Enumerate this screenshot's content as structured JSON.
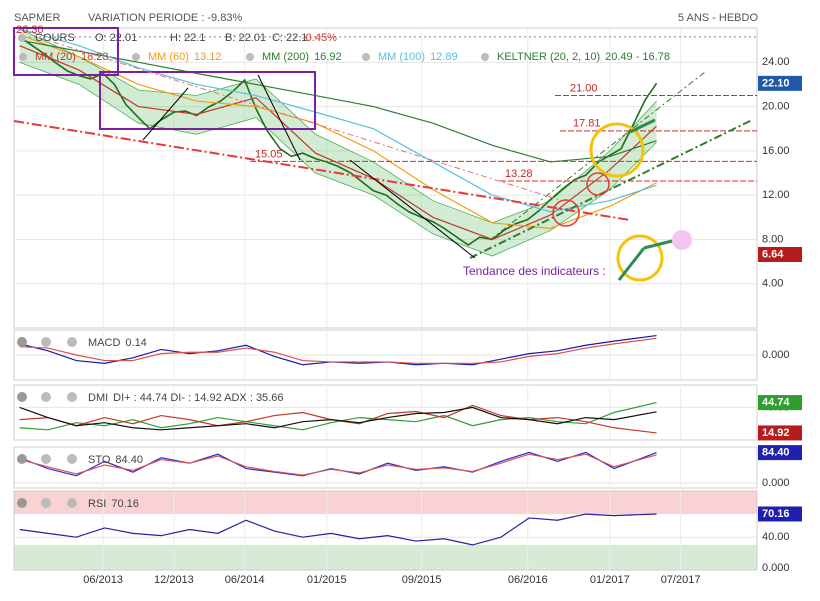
{
  "header": {
    "symbol": "SAPMER",
    "variation": "VARIATION PERIODE : -9.83%",
    "period": "5 ANS - HEBDO"
  },
  "chart_data": [
    {
      "type": "line",
      "xlim": [
        2012.79,
        2018.04
      ],
      "ylim": [
        0,
        27.1
      ],
      "xticks": [
        {
          "value": 2013.42,
          "label": "06/2013"
        },
        {
          "value": 2013.92,
          "label": "12/2013"
        },
        {
          "value": 2014.42,
          "label": "06/2014"
        },
        {
          "value": 2015.0,
          "label": "01/2015"
        },
        {
          "value": 2015.67,
          "label": "09/2015"
        },
        {
          "value": 2016.42,
          "label": "06/2016"
        },
        {
          "value": 2017.0,
          "label": "01/2017"
        },
        {
          "value": 2017.5,
          "label": "07/2017"
        }
      ],
      "yticks": [
        {
          "value": 4,
          "label": "4.00"
        },
        {
          "value": 8,
          "label": "8.00"
        },
        {
          "value": 12,
          "label": "12.00"
        },
        {
          "value": 16,
          "label": "16.00"
        },
        {
          "value": 20,
          "label": "20.00"
        },
        {
          "value": 24,
          "label": "24.00"
        }
      ],
      "grid": true,
      "quote": [
        "O: 22.01",
        "H: 22.1",
        "B: 22.01",
        "C: 22.1"
      ],
      "change": "-0.45%",
      "x": [
        2012.83,
        2012.92,
        2013.0,
        2013.08,
        2013.17,
        2013.25,
        2013.33,
        2013.42,
        2013.5,
        2013.58,
        2013.67,
        2013.75,
        2013.83,
        2013.92,
        2014.0,
        2014.08,
        2014.17,
        2014.25,
        2014.33,
        2014.42,
        2014.5,
        2014.58,
        2014.67,
        2014.75,
        2014.83,
        2014.92,
        2015.0,
        2015.08,
        2015.17,
        2015.25,
        2015.33,
        2015.42,
        2015.5,
        2015.58,
        2015.67,
        2015.75,
        2015.83,
        2015.92,
        2016.0,
        2016.08,
        2016.17,
        2016.25,
        2016.33,
        2016.42,
        2016.5,
        2016.58,
        2016.67,
        2016.75,
        2016.83,
        2016.92,
        2017.0,
        2017.08,
        2017.17,
        2017.25,
        2017.33
      ],
      "series": [
        {
          "name": "COURS",
          "color": "#1b6e1b",
          "values": [
            26.3,
            25.5,
            24.8,
            24.0,
            23.2,
            22.8,
            22.5,
            23.0,
            22.0,
            20.2,
            19.0,
            18.0,
            18.8,
            19.5,
            19.6,
            19.2,
            20.0,
            20.5,
            21.3,
            22.4,
            19.8,
            17.8,
            16.2,
            15.5,
            15.8,
            15.3,
            15.0,
            14.6,
            14.0,
            13.2,
            12.4,
            12.0,
            11.2,
            10.5,
            10.0,
            9.6,
            9.0,
            8.2,
            7.5,
            8.2,
            8.0,
            8.8,
            9.4,
            9.8,
            10.6,
            11.6,
            12.6,
            13.4,
            13.8,
            15.0,
            15.6,
            16.2,
            18.5,
            20.6,
            22.1
          ]
        },
        {
          "name": "MM (20)",
          "color": "#c0392b",
          "x": [
            2012.83,
            2013.25,
            2013.67,
            2014.08,
            2014.5,
            2014.92,
            2015.33,
            2015.75,
            2016.17,
            2016.58,
            2017.0,
            2017.33
          ],
          "values": [
            25.5,
            23.3,
            20.0,
            19.3,
            20.8,
            15.8,
            13.5,
            10.0,
            8.0,
            10.2,
            14.3,
            18.23
          ]
        },
        {
          "name": "MM (60)",
          "color": "#f39c12",
          "x": [
            2012.83,
            2013.25,
            2013.67,
            2014.08,
            2014.5,
            2014.92,
            2015.33,
            2015.75,
            2016.17,
            2016.58,
            2017.0,
            2017.33
          ],
          "values": [
            26.5,
            24.5,
            22.0,
            20.5,
            20.0,
            18.5,
            16.0,
            12.5,
            9.5,
            9.0,
            11.0,
            13.12
          ]
        },
        {
          "name": "MM (200)",
          "color": "#2e7d32",
          "x": [
            2012.83,
            2013.25,
            2013.67,
            2014.08,
            2014.5,
            2014.92,
            2015.33,
            2015.75,
            2016.17,
            2016.58,
            2017.0,
            2017.33
          ],
          "values": [
            26.0,
            25.0,
            24.0,
            23.0,
            22.0,
            21.0,
            20.0,
            18.5,
            16.5,
            15.0,
            15.5,
            16.92
          ]
        },
        {
          "name": "MM (100)",
          "color": "#5bc0de",
          "x": [
            2012.83,
            2013.25,
            2013.67,
            2014.08,
            2014.5,
            2014.92,
            2015.33,
            2015.75,
            2016.17,
            2016.58,
            2017.0,
            2017.33
          ],
          "values": [
            27.0,
            25.5,
            23.5,
            22.0,
            21.0,
            19.5,
            18.0,
            15.0,
            12.0,
            10.5,
            11.5,
            12.89
          ]
        }
      ],
      "keltner": {
        "name": "KELTNER (20, 2, 10)",
        "color": "#4caf50",
        "value_label": "20.49 - 16.78",
        "x": [
          2012.83,
          2013.25,
          2013.67,
          2014.08,
          2014.5,
          2014.92,
          2015.33,
          2015.75,
          2016.17,
          2016.58,
          2017.0,
          2017.33
        ],
        "upper": [
          27.0,
          24.5,
          21.5,
          21.0,
          22.5,
          17.5,
          15.0,
          11.5,
          9.5,
          11.5,
          16.0,
          20.49
        ],
        "lower": [
          24.0,
          22.0,
          18.5,
          17.5,
          19.0,
          14.0,
          12.0,
          8.5,
          6.5,
          8.8,
          12.5,
          16.78
        ]
      },
      "levels": [
        {
          "value": 26.3,
          "label": "26.30"
        },
        {
          "value": 21,
          "label": "21.00"
        },
        {
          "value": 17.81
        },
        {
          "value": 15.05
        },
        {
          "value": 13.28
        }
      ],
      "badges": [
        {
          "value": 22.1,
          "label": "22.10",
          "color": "#1f5aa8"
        },
        {
          "value": 6.64,
          "color": "#b71c1c"
        }
      ],
      "annotation": "Tendance des indicateurs :"
    },
    {
      "type": "line",
      "title": "MACD",
      "readout": "0.14",
      "ylim": [
        -0.18,
        0.18
      ],
      "yticks": [
        {
          "value": 0,
          "label": "0.000"
        }
      ],
      "x": [
        2012.83,
        2013.03,
        2013.23,
        2013.43,
        2013.63,
        2013.83,
        2014.03,
        2014.23,
        2014.43,
        2014.63,
        2014.83,
        2015.03,
        2015.23,
        2015.43,
        2015.63,
        2015.83,
        2016.03,
        2016.23,
        2016.43,
        2016.63,
        2016.83,
        2017.03,
        2017.33
      ],
      "series": [
        {
          "name": "MACD",
          "color": "#1a1aa6",
          "values": [
            0.08,
            0.03,
            -0.04,
            -0.06,
            -0.02,
            0.04,
            0.01,
            0.03,
            0.07,
            -0.01,
            -0.07,
            -0.05,
            -0.06,
            -0.05,
            -0.07,
            -0.06,
            -0.07,
            -0.03,
            0.01,
            0.03,
            0.07,
            0.1,
            0.14
          ]
        },
        {
          "name": "Signal",
          "color": "#d9534f",
          "values": [
            0.06,
            0.05,
            0.0,
            -0.04,
            -0.04,
            0.01,
            0.02,
            0.02,
            0.05,
            0.02,
            -0.04,
            -0.05,
            -0.05,
            -0.05,
            -0.06,
            -0.06,
            -0.06,
            -0.05,
            -0.01,
            0.01,
            0.05,
            0.08,
            0.12
          ]
        }
      ]
    },
    {
      "type": "line",
      "title": "DMI",
      "readout": "DI+ : 44.74 DI- : 14.92 ADX : 35.66",
      "ylim": [
        8,
        62
      ],
      "yticks": [
        {
          "value": 40,
          "label": "40.00"
        }
      ],
      "x": [
        2012.83,
        2013.03,
        2013.23,
        2013.43,
        2013.63,
        2013.83,
        2014.03,
        2014.23,
        2014.43,
        2014.63,
        2014.83,
        2015.03,
        2015.23,
        2015.43,
        2015.63,
        2015.83,
        2016.03,
        2016.23,
        2016.43,
        2016.63,
        2016.83,
        2017.03,
        2017.33
      ],
      "series": [
        {
          "name": "DI+",
          "color": "#2e9e2e",
          "values": [
            20,
            18,
            25,
            22,
            28,
            20,
            24,
            30,
            26,
            22,
            18,
            25,
            30,
            28,
            26,
            32,
            22,
            28,
            30,
            26,
            24,
            35,
            44.74
          ]
        },
        {
          "name": "DI-",
          "color": "#c0392b",
          "values": [
            28,
            30,
            22,
            30,
            24,
            32,
            28,
            22,
            26,
            32,
            35,
            28,
            24,
            34,
            36,
            30,
            42,
            32,
            28,
            30,
            26,
            20,
            14.92
          ]
        },
        {
          "name": "ADX",
          "color": "#111111",
          "values": [
            40,
            30,
            22,
            25,
            20,
            18,
            20,
            22,
            24,
            20,
            26,
            28,
            25,
            30,
            34,
            35,
            40,
            30,
            28,
            24,
            30,
            28,
            35.66
          ]
        }
      ],
      "badges": [
        {
          "value": 44.74,
          "color": "#2e9e2e"
        },
        {
          "value": 14.92,
          "color": "#b71c1c"
        }
      ]
    },
    {
      "type": "line",
      "title": "STO",
      "readout": "84.40",
      "ylim": [
        -14,
        100
      ],
      "yticks": [
        {
          "value": 0,
          "label": "0.000"
        }
      ],
      "x": [
        2012.83,
        2013.03,
        2013.23,
        2013.43,
        2013.63,
        2013.83,
        2014.03,
        2014.23,
        2014.43,
        2014.63,
        2014.83,
        2015.03,
        2015.23,
        2015.43,
        2015.63,
        2015.83,
        2016.03,
        2016.23,
        2016.43,
        2016.63,
        2016.83,
        2017.03,
        2017.33
      ],
      "series": [
        {
          "name": "%K",
          "color": "#2b2bd0",
          "values": [
            70,
            40,
            20,
            60,
            30,
            70,
            55,
            80,
            40,
            30,
            20,
            40,
            25,
            55,
            35,
            45,
            30,
            60,
            85,
            60,
            85,
            40,
            84.4
          ]
        },
        {
          "name": "%D",
          "color": "#d9534f",
          "values": [
            65,
            45,
            25,
            50,
            35,
            65,
            55,
            75,
            45,
            32,
            22,
            38,
            28,
            50,
            38,
            42,
            32,
            55,
            80,
            65,
            80,
            45,
            78
          ]
        }
      ],
      "badges": [
        {
          "value": 84.4,
          "label": "84.40",
          "color": "#1f1fb0"
        }
      ]
    },
    {
      "type": "line",
      "title": "RSI",
      "readout": "70.16",
      "ylim": [
        -2.6,
        100
      ],
      "yticks": [
        {
          "value": 40,
          "label": "40.00"
        },
        {
          "value": 0,
          "label": "0.000"
        }
      ],
      "overbought": 70,
      "oversold": 30,
      "x": [
        2012.83,
        2013.03,
        2013.23,
        2013.43,
        2013.63,
        2013.83,
        2014.03,
        2014.23,
        2014.43,
        2014.63,
        2014.83,
        2015.03,
        2015.23,
        2015.43,
        2015.63,
        2015.83,
        2016.03,
        2016.23,
        2016.43,
        2016.63,
        2016.83,
        2017.03,
        2017.33
      ],
      "series": [
        {
          "name": "RSI",
          "color": "#22229a",
          "values": [
            50,
            45,
            40,
            52,
            45,
            42,
            50,
            45,
            62,
            48,
            40,
            45,
            38,
            42,
            35,
            38,
            30,
            40,
            65,
            62,
            70,
            68,
            70.16
          ]
        }
      ],
      "badges": [
        {
          "value": 70.16,
          "color": "#1f1fb0"
        }
      ]
    }
  ]
}
